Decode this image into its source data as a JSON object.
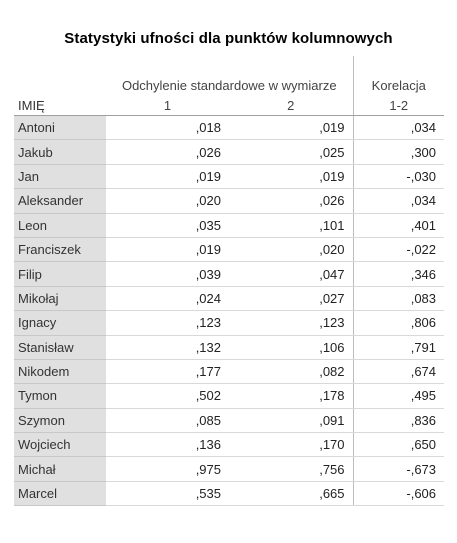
{
  "title": "Statystyki ufności dla punktów kolumnowych",
  "header": {
    "group_label": "Odchylenie standardowe w wymiarze",
    "corr_label": "Korelacja",
    "name_col": "IMIĘ",
    "dim1": "1",
    "dim2": "2",
    "corr_sub": "1-2"
  },
  "rows": [
    {
      "name": "Antoni",
      "d1": ",018",
      "d2": ",019",
      "corr": ",034"
    },
    {
      "name": "Jakub",
      "d1": ",026",
      "d2": ",025",
      "corr": ",300"
    },
    {
      "name": "Jan",
      "d1": ",019",
      "d2": ",019",
      "corr": "-,030"
    },
    {
      "name": "Aleksander",
      "d1": ",020",
      "d2": ",026",
      "corr": ",034"
    },
    {
      "name": "Leon",
      "d1": ",035",
      "d2": ",101",
      "corr": ",401"
    },
    {
      "name": "Franciszek",
      "d1": ",019",
      "d2": ",020",
      "corr": "-,022"
    },
    {
      "name": "Filip",
      "d1": ",039",
      "d2": ",047",
      "corr": ",346"
    },
    {
      "name": "Mikołaj",
      "d1": ",024",
      "d2": ",027",
      "corr": ",083"
    },
    {
      "name": "Ignacy",
      "d1": ",123",
      "d2": ",123",
      "corr": ",806"
    },
    {
      "name": "Stanisław",
      "d1": ",132",
      "d2": ",106",
      "corr": ",791"
    },
    {
      "name": "Nikodem",
      "d1": ",177",
      "d2": ",082",
      "corr": ",674"
    },
    {
      "name": "Tymon",
      "d1": ",502",
      "d2": ",178",
      "corr": ",495"
    },
    {
      "name": "Szymon",
      "d1": ",085",
      "d2": ",091",
      "corr": ",836"
    },
    {
      "name": "Wojciech",
      "d1": ",136",
      "d2": ",170",
      "corr": ",650"
    },
    {
      "name": "Michał",
      "d1": ",975",
      "d2": ",756",
      "corr": "-,673"
    },
    {
      "name": "Marcel",
      "d1": ",535",
      "d2": ",665",
      "corr": "-,606"
    }
  ]
}
